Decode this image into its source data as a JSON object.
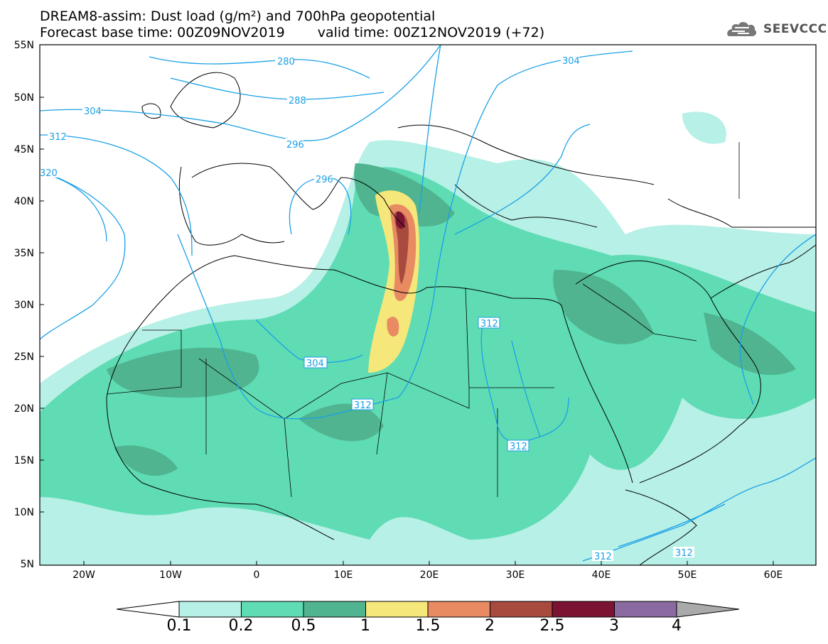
{
  "title": {
    "line1": "DREAM8-assim: Dust load (g/m²) and 700hPa geopotential",
    "base_time": "Forecast base time: 00Z09NOV2019",
    "valid_time": "valid time: 00Z12NOV2019 (+72)"
  },
  "logo": {
    "text": "SEEVCCC",
    "icon": "cloud-icon"
  },
  "map": {
    "lat_labels": [
      "55N",
      "50N",
      "45N",
      "40N",
      "35N",
      "30N",
      "25N",
      "20N",
      "15N",
      "10N",
      "5N"
    ],
    "lon_labels": [
      "20W",
      "10W",
      "0",
      "10E",
      "20E",
      "30E",
      "40E",
      "50E",
      "60E"
    ],
    "contour_labels": [
      "280",
      "288",
      "296",
      "296",
      "304",
      "304",
      "312",
      "312",
      "312",
      "312",
      "312",
      "312",
      "320",
      "304"
    ]
  },
  "colorbar": {
    "labels": [
      "0.1",
      "0.2",
      "0.5",
      "1",
      "1.5",
      "2",
      "2.5",
      "3",
      "4"
    ],
    "colors": [
      "#b7f0e6",
      "#5fdcb4",
      "#4fb48f",
      "#f5e77a",
      "#e88a62",
      "#a84a3e",
      "#7a1432",
      "#8a6aa0",
      "#aaaaaa"
    ]
  },
  "colors": {
    "contour": "#1aa0e6",
    "coast": "#000000",
    "dust_low": "#b7f0e6",
    "dust_mid": "#5fdcb4",
    "dust_high": "#4fb48f"
  }
}
